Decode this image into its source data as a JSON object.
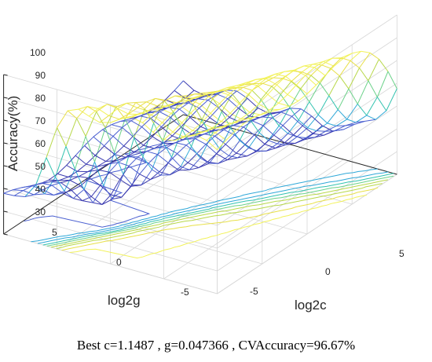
{
  "chart_data": {
    "type": "surface-mesh-with-contour",
    "zlabel": "Accuracy(%)",
    "xlabel": "log2c",
    "ylabel": "log2g",
    "z_ticks": [
      "30",
      "40",
      "50",
      "60",
      "70",
      "80",
      "90",
      "100"
    ],
    "x_ticks": [
      "-5",
      "0",
      "5"
    ],
    "y_ticks": [
      "-5",
      "0",
      "5"
    ],
    "z_range": [
      30,
      100
    ],
    "x_range": [
      -8,
      8
    ],
    "y_range": [
      -8,
      8
    ],
    "grid": true,
    "colormap": [
      "#3b3bb0",
      "#4a5fd0",
      "#2fa8d8",
      "#33c3b0",
      "#6cd28a",
      "#b8d84a",
      "#e8e04a",
      "#f2f25a"
    ]
  },
  "caption": "Best c=1.1487 ,  g=0.047366 ,  CVAccuracy=96.67%"
}
